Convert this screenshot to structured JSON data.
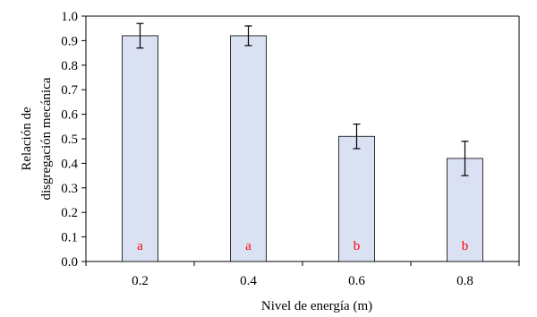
{
  "chart_data": {
    "type": "bar",
    "categories": [
      "0.2",
      "0.4",
      "0.6",
      "0.8"
    ],
    "values": [
      0.92,
      0.92,
      0.51,
      0.42
    ],
    "error": [
      0.05,
      0.04,
      0.05,
      0.07
    ],
    "group_letters": [
      "a",
      "a",
      "b",
      "b"
    ],
    "xlabel": "Nivel de energía (m)",
    "ylabel_lines": [
      "Relación de",
      "disgregación mecánica"
    ],
    "ylim": [
      0,
      1.0
    ],
    "yticks": [
      "0.0",
      "0.1",
      "0.2",
      "0.3",
      "0.4",
      "0.5",
      "0.6",
      "0.7",
      "0.8",
      "0.9",
      "1.0"
    ],
    "grid": false,
    "legend": "none",
    "colors": {
      "bar_fill": "#d9e1f2",
      "bar_stroke": "#000000",
      "letter": "#ff0000",
      "axis": "#000000"
    }
  }
}
